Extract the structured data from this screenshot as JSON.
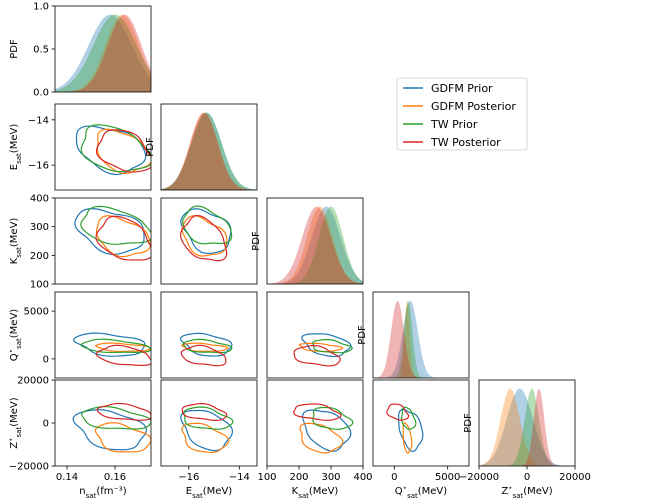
{
  "chart_data": {
    "type": "corner",
    "parameters": [
      {
        "key": "n",
        "label_main": "n",
        "label_sub": "sat",
        "label_unit": "(fm⁻³)",
        "lim": [
          0.135,
          0.175
        ],
        "ticks": [
          0.14,
          0.16
        ],
        "tick_labels": [
          "0.14",
          "0.16"
        ]
      },
      {
        "key": "E",
        "label_main": "E",
        "label_sub": "sat",
        "label_unit": "(MeV)",
        "lim": [
          -17.1,
          -13.3
        ],
        "ticks": [
          -16,
          -14
        ],
        "tick_labels": [
          "−16",
          "−14"
        ]
      },
      {
        "key": "K",
        "label_main": "K",
        "label_sub": "sat",
        "label_unit": "(MeV)",
        "lim": [
          100,
          400
        ],
        "ticks": [
          100,
          200,
          300,
          400
        ],
        "tick_labels": [
          "100",
          "200",
          "300",
          "400"
        ]
      },
      {
        "key": "Q",
        "label_main": "Q",
        "label_star": "⋆",
        "label_sub": "sat",
        "label_unit": "(MeV)",
        "lim": [
          -2000,
          7000
        ],
        "ticks": [
          0,
          5000
        ],
        "tick_labels": [
          "0",
          "5000"
        ]
      },
      {
        "key": "Z",
        "label_main": "Z",
        "label_star": "⋆",
        "label_sub": "sat",
        "label_unit": "(MeV)",
        "lim": [
          -20000,
          20000
        ],
        "ticks": [
          -20000,
          0,
          20000
        ],
        "tick_labels": [
          "−20000",
          "0",
          "20000"
        ]
      }
    ],
    "diag_ylabel": "PDF",
    "top_pdf_axis": {
      "lim": [
        0,
        1.0
      ],
      "ticks": [
        0.0,
        0.5,
        1.0
      ],
      "tick_labels": [
        "0.0",
        "0.5",
        "1.0"
      ]
    },
    "legend": {
      "position": "right",
      "entries": [
        "GDFM Prior",
        "GDFM Posterior",
        "TW Prior",
        "TW Posterior"
      ]
    },
    "series": [
      {
        "name": "GDFM Prior",
        "color": "#1f77b4",
        "marginals": {
          "n": {
            "mu": 0.158,
            "sigma": 0.009
          },
          "E": {
            "mu": -15.3,
            "sigma": 0.6
          },
          "K": {
            "mu": 285,
            "sigma": 45
          },
          "Q": {
            "mu": 1500,
            "sigma": 700
          },
          "Z": {
            "mu": -3000,
            "sigma": 5500
          }
        }
      },
      {
        "name": "GDFM Posterior",
        "color": "#ff7f0e",
        "marginals": {
          "n": {
            "mu": 0.163,
            "sigma": 0.007
          },
          "E": {
            "mu": -15.4,
            "sigma": 0.55
          },
          "K": {
            "mu": 265,
            "sigma": 40
          },
          "Q": {
            "mu": 1200,
            "sigma": 250
          },
          "Z": {
            "mu": -7000,
            "sigma": 4000
          }
        }
      },
      {
        "name": "TW Prior",
        "color": "#2ca02c",
        "marginals": {
          "n": {
            "mu": 0.16,
            "sigma": 0.009
          },
          "E": {
            "mu": -15.3,
            "sigma": 0.6
          },
          "K": {
            "mu": 300,
            "sigma": 38
          },
          "Q": {
            "mu": 1300,
            "sigma": 400
          },
          "Z": {
            "mu": 2000,
            "sigma": 3000
          }
        }
      },
      {
        "name": "TW Posterior",
        "color": "#d62728",
        "marginals": {
          "n": {
            "mu": 0.164,
            "sigma": 0.007
          },
          "E": {
            "mu": -15.4,
            "sigma": 0.55
          },
          "K": {
            "mu": 255,
            "sigma": 45
          },
          "Q": {
            "mu": 300,
            "sigma": 600
          },
          "Z": {
            "mu": 5000,
            "sigma": 2200
          }
        }
      }
    ]
  }
}
